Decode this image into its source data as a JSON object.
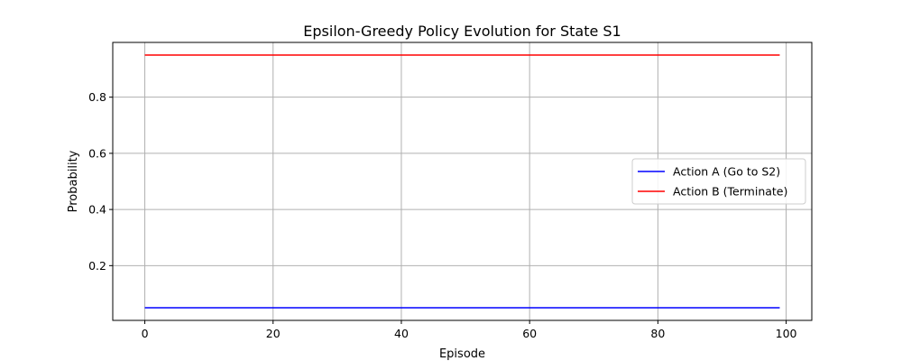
{
  "chart_data": {
    "type": "line",
    "title": "Epsilon-Greedy Policy Evolution for State S1",
    "xlabel": "Episode",
    "ylabel": "Probability",
    "x_range": [
      0,
      99
    ],
    "xlim": [
      -5,
      104
    ],
    "ylim": [
      0.005,
      0.995
    ],
    "xticks": [
      0,
      20,
      40,
      60,
      80,
      100
    ],
    "yticks": [
      0.2,
      0.4,
      0.6,
      0.8
    ],
    "grid": true,
    "legend_position": "center-right",
    "series": [
      {
        "name": "Action A (Go to S2)",
        "color": "#0000ff",
        "constant_value": 0.05
      },
      {
        "name": "Action B (Terminate)",
        "color": "#ff0000",
        "constant_value": 0.95
      }
    ]
  }
}
